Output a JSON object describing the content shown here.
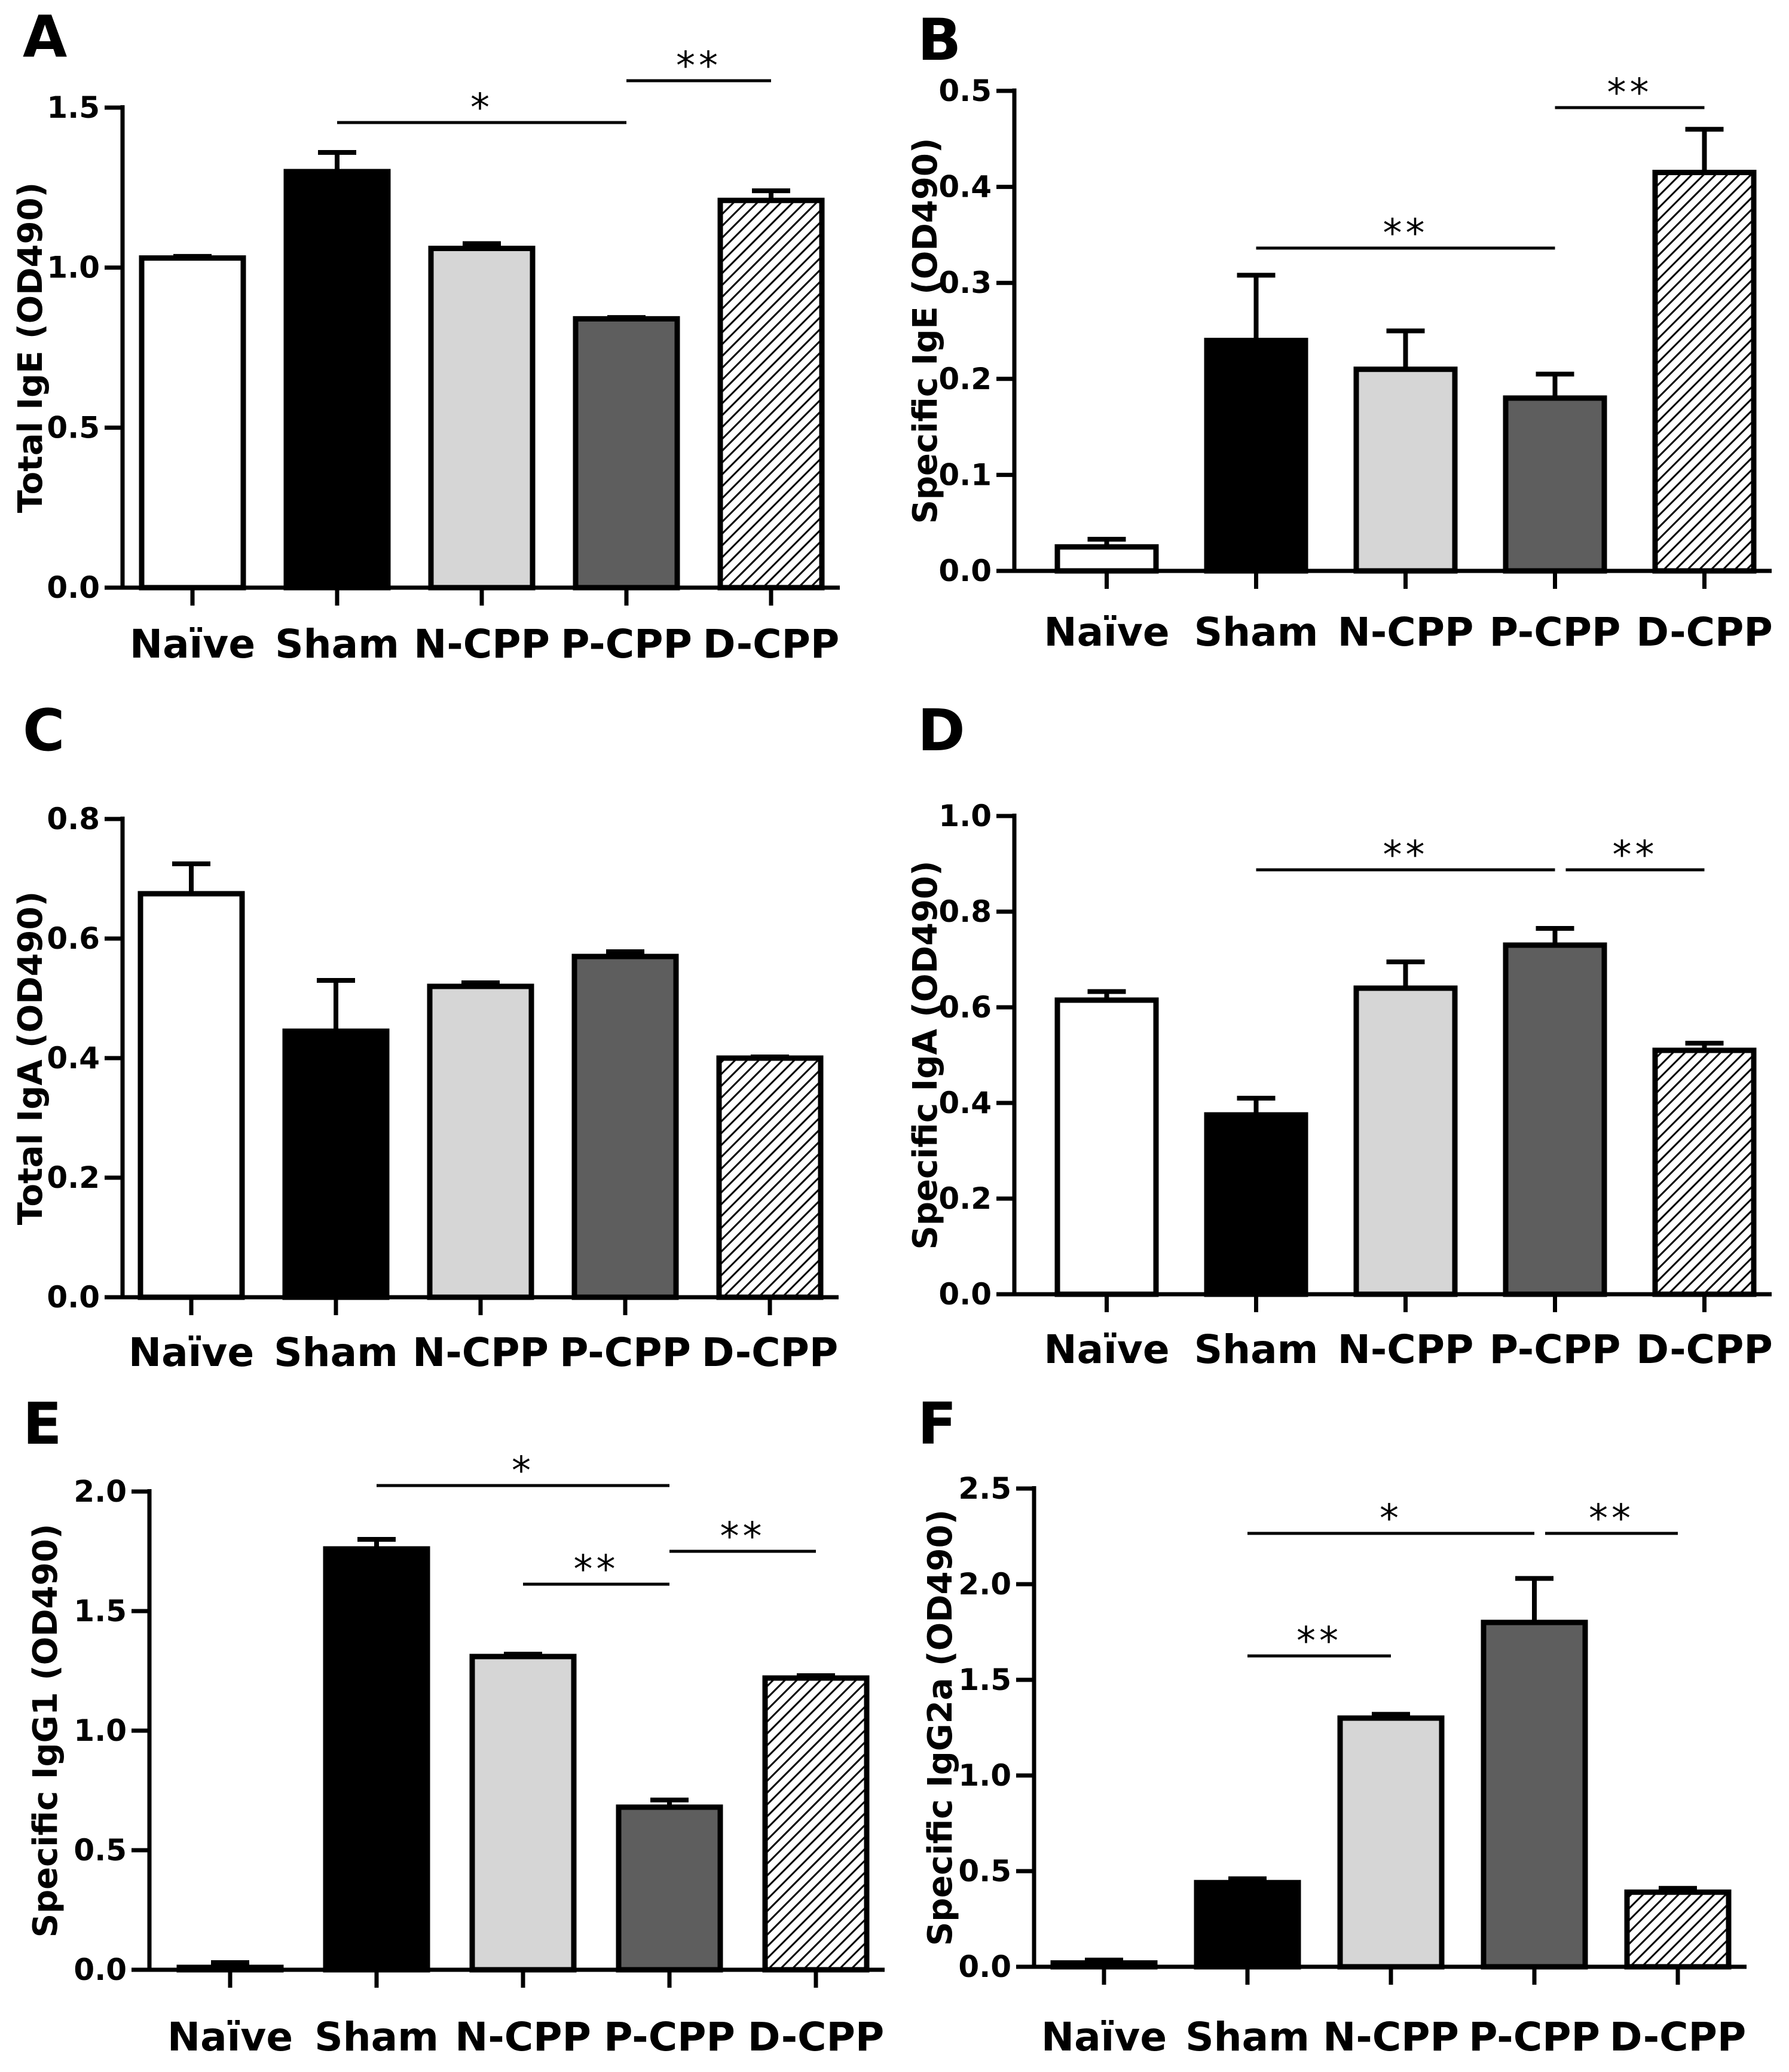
{
  "chart_data": [
    {
      "type": "bar",
      "panel": "A",
      "title": "",
      "ylabel": "Total IgE (OD490)",
      "xlabel": "",
      "categories": [
        "Naïve",
        "Sham",
        "N-CPP",
        "P-CPP",
        "D-CPP"
      ],
      "values": [
        1.03,
        1.3,
        1.06,
        0.84,
        1.21
      ],
      "errors": [
        0.005,
        0.06,
        0.015,
        0.004,
        0.03
      ],
      "ylim": [
        0,
        1.5
      ],
      "yticks": [
        0.0,
        0.5,
        1.0,
        1.5
      ],
      "tick_labels": [
        "0.0",
        "0.5",
        "1.0",
        "1.5"
      ],
      "significance": [
        {
          "from": 1,
          "to": 3,
          "label": "*"
        },
        {
          "from": 3,
          "to": 4,
          "label": "**"
        }
      ]
    },
    {
      "type": "bar",
      "panel": "B",
      "title": "",
      "ylabel": "Specific IgE (OD490)",
      "xlabel": "",
      "categories": [
        "Naïve",
        "Sham",
        "N-CPP",
        "P-CPP",
        "D-CPP"
      ],
      "values": [
        0.025,
        0.24,
        0.21,
        0.18,
        0.415
      ],
      "errors": [
        0.008,
        0.068,
        0.04,
        0.025,
        0.045
      ],
      "ylim": [
        0,
        0.5
      ],
      "yticks": [
        0.0,
        0.1,
        0.2,
        0.3,
        0.4,
        0.5
      ],
      "tick_labels": [
        "0.0",
        "0.1",
        "0.2",
        "0.3",
        "0.4",
        "0.5"
      ],
      "significance": [
        {
          "from": 1,
          "to": 3,
          "label": "**"
        },
        {
          "from": 3,
          "to": 4,
          "label": "**"
        }
      ]
    },
    {
      "type": "bar",
      "panel": "C",
      "title": "",
      "ylabel": "Total IgA (OD490)",
      "xlabel": "",
      "categories": [
        "Naïve",
        "Sham",
        "N-CPP",
        "P-CPP",
        "D-CPP"
      ],
      "values": [
        0.675,
        0.445,
        0.52,
        0.57,
        0.4
      ],
      "errors": [
        0.05,
        0.085,
        0.006,
        0.008,
        0.002
      ],
      "ylim": [
        0,
        0.8
      ],
      "yticks": [
        0.0,
        0.2,
        0.4,
        0.6,
        0.8
      ],
      "tick_labels": [
        "0.0",
        "0.2",
        "0.4",
        "0.6",
        "0.8"
      ],
      "significance": []
    },
    {
      "type": "bar",
      "panel": "D",
      "title": "",
      "ylabel": "Specific IgA (OD490)",
      "xlabel": "",
      "categories": [
        "Naïve",
        "Sham",
        "N-CPP",
        "P-CPP",
        "D-CPP"
      ],
      "values": [
        0.615,
        0.375,
        0.64,
        0.73,
        0.51
      ],
      "errors": [
        0.018,
        0.035,
        0.055,
        0.035,
        0.015
      ],
      "ylim": [
        0,
        1.0
      ],
      "yticks": [
        0.0,
        0.2,
        0.4,
        0.6,
        0.8,
        1.0
      ],
      "tick_labels": [
        "0.0",
        "0.2",
        "0.4",
        "0.6",
        "0.8",
        "1.0"
      ],
      "significance": [
        {
          "from": 1,
          "to": 3,
          "label": "**"
        },
        {
          "from": 3,
          "to": 4,
          "label": "**"
        }
      ]
    },
    {
      "type": "bar",
      "panel": "E",
      "title": "",
      "ylabel": "Specific IgG1 (OD490)",
      "xlabel": "",
      "categories": [
        "Naïve",
        "Sham",
        "N-CPP",
        "P-CPP",
        "D-CPP"
      ],
      "values": [
        0.01,
        1.76,
        1.31,
        0.68,
        1.22
      ],
      "errors": [
        0.02,
        0.04,
        0.01,
        0.03,
        0.01
      ],
      "ylim": [
        0,
        2.0
      ],
      "yticks": [
        0.0,
        0.5,
        1.0,
        1.5,
        2.0
      ],
      "tick_labels": [
        "0.0",
        "0.5",
        "1.0",
        "1.5",
        "2.0"
      ],
      "significance": [
        {
          "from": 1,
          "to": 3,
          "label": "*"
        },
        {
          "from": 2,
          "to": 3,
          "label": "**"
        },
        {
          "from": 3,
          "to": 4,
          "label": "**"
        }
      ]
    },
    {
      "type": "bar",
      "panel": "F",
      "title": "",
      "ylabel": "Specific IgG2a (OD490)",
      "xlabel": "",
      "categories": [
        "Naïve",
        "Sham",
        "N-CPP",
        "P-CPP",
        "D-CPP"
      ],
      "values": [
        0.02,
        0.44,
        1.3,
        1.8,
        0.39
      ],
      "errors": [
        0.015,
        0.02,
        0.02,
        0.23,
        0.02
      ],
      "ylim": [
        0,
        2.5
      ],
      "yticks": [
        0.0,
        0.5,
        1.0,
        1.5,
        2.0,
        2.5
      ],
      "tick_labels": [
        "0.0",
        "0.5",
        "1.0",
        "1.5",
        "2.0",
        "2.5"
      ],
      "significance": [
        {
          "from": 1,
          "to": 2,
          "label": "**"
        },
        {
          "from": 1,
          "to": 3,
          "label": "*"
        },
        {
          "from": 3,
          "to": 4,
          "label": "**"
        }
      ]
    }
  ],
  "style": {
    "bar_fills": [
      "#ffffff",
      "#000000",
      "#d6d6d6",
      "#5e5e5e",
      "hatch"
    ],
    "hatch_color": "#000000"
  }
}
